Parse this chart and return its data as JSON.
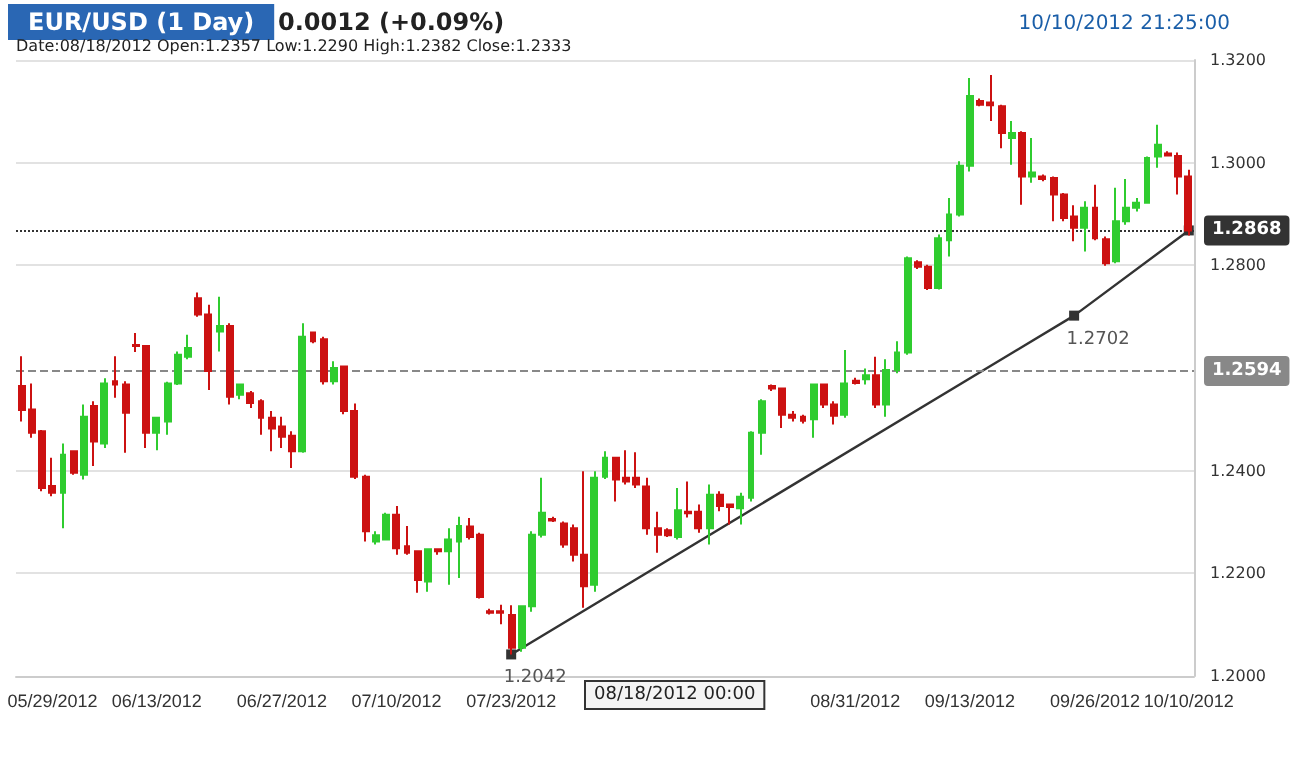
{
  "chart_data": {
    "type": "candlestick",
    "title": "EUR/USD (1 Day)",
    "subtitle": "0.0012 (+0.09%)",
    "annotations": [
      "10/10/2012 21:25:00",
      "Date:08/18/2012 Open:1.2357 Low:1.2290 High:1.2382 Close:1.2333",
      "08/18/2012 00:00"
    ],
    "categories": [
      null,
      null,
      null,
      "05/29/2012",
      null,
      null,
      null,
      null,
      null,
      null,
      null,
      null,
      null,
      "06/13/2012",
      null,
      null,
      null,
      null,
      null,
      null,
      null,
      null,
      null,
      null,
      null,
      "06/27/2012",
      null,
      null,
      null,
      null,
      null,
      null,
      null,
      null,
      null,
      null,
      "07/10/2012",
      null,
      null,
      null,
      null,
      null,
      null,
      null,
      null,
      null,
      null,
      "07/23/2012",
      null,
      null,
      null,
      null,
      null,
      null,
      null,
      null,
      null,
      null,
      null,
      null,
      null,
      null,
      null,
      null,
      null,
      null,
      null,
      null,
      null,
      null,
      null,
      null,
      null,
      null,
      null,
      null,
      null,
      null,
      null,
      null,
      "08/31/2012",
      null,
      null,
      null,
      null,
      null,
      null,
      null,
      null,
      null,
      null,
      "09/13/2012",
      null,
      null,
      null,
      null,
      null,
      null,
      null,
      null,
      null,
      null,
      null,
      "09/26/2012",
      null,
      null,
      null,
      null,
      null,
      null,
      null,
      null,
      "10/10/2012"
    ],
    "series": [
      {
        "colors": [
          "#cc1111",
          "#cc1111",
          "#cc1111",
          "#cc1111",
          "#2fcc2f",
          "#cc1111",
          "#2fcc2f",
          "#cc1111",
          "#2fcc2f",
          "#cc1111",
          "#cc1111",
          "#cc1111",
          "#cc1111",
          "#2fcc2f",
          "#2fcc2f",
          "#2fcc2f",
          "#2fcc2f",
          "#cc1111",
          "#cc1111",
          "#2fcc2f",
          "#cc1111",
          "#2fcc2f",
          "#cc1111",
          "#cc1111",
          "#cc1111",
          "#cc1111",
          "#cc1111",
          "#2fcc2f",
          "#cc1111",
          "#cc1111",
          "#2fcc2f",
          "#cc1111",
          "#cc1111",
          "#cc1111",
          "#2fcc2f",
          "#2fcc2f",
          "#cc1111",
          "#cc1111",
          "#cc1111",
          "#2fcc2f",
          "#cc1111",
          "#2fcc2f",
          "#2fcc2f",
          "#cc1111",
          "#cc1111",
          "#cc1111",
          "#cc1111",
          "#cc1111",
          "#2fcc2f",
          "#2fcc2f",
          "#2fcc2f",
          "#cc1111",
          "#cc1111",
          "#cc1111",
          "#cc1111",
          "#2fcc2f",
          "#2fcc2f",
          "#cc1111",
          "#cc1111",
          "#cc1111",
          "#cc1111",
          "#cc1111",
          "#cc1111",
          "#2fcc2f",
          "#cc1111",
          "#cc1111",
          "#2fcc2f",
          "#cc1111",
          "#cc1111",
          "#2fcc2f",
          "#2fcc2f",
          "#2fcc2f",
          "#cc1111",
          "#cc1111",
          "#cc1111",
          "#cc1111",
          "#2fcc2f",
          "#cc1111",
          "#cc1111",
          "#2fcc2f",
          "#cc1111",
          "#2fcc2f",
          "#cc1111",
          "#2fcc2f",
          "#2fcc2f",
          "#2fcc2f",
          "#cc1111",
          "#cc1111",
          "#2fcc2f",
          "#2fcc2f",
          "#2fcc2f",
          "#2fcc2f",
          "#cc1111",
          "#cc1111",
          "#cc1111",
          "#2fcc2f",
          "#cc1111",
          "#2fcc2f",
          "#cc1111",
          "#cc1111",
          "#cc1111",
          "#cc1111",
          "#2fcc2f",
          "#cc1111",
          "#cc1111",
          "#2fcc2f",
          "#2fcc2f",
          "#2fcc2f",
          "#2fcc2f",
          "#2fcc2f",
          "#cc1111",
          "#cc1111",
          "#cc1111"
        ],
        "ohlc": [
          [
            1.2565,
            1.2623,
            1.2496,
            1.2518
          ],
          [
            1.2519,
            1.257,
            1.2464,
            1.2474
          ],
          [
            1.2477,
            1.2479,
            1.236,
            1.2366
          ],
          [
            1.237,
            1.2425,
            1.235,
            1.2357
          ],
          [
            1.2357,
            1.2453,
            1.2288,
            1.2431
          ],
          [
            1.2438,
            1.2438,
            1.2392,
            1.2396
          ],
          [
            1.2392,
            1.2529,
            1.2383,
            1.2505
          ],
          [
            1.2526,
            1.2535,
            1.2409,
            1.2457
          ],
          [
            1.2453,
            1.258,
            1.2444,
            1.257
          ],
          [
            1.2574,
            1.2623,
            1.2542,
            1.2568
          ],
          [
            1.2568,
            1.2574,
            1.2435,
            1.2513
          ],
          [
            1.2645,
            1.2668,
            1.2631,
            1.2643
          ],
          [
            1.2643,
            1.2645,
            1.2444,
            1.2474
          ],
          [
            1.2474,
            1.2503,
            1.244,
            1.2503
          ],
          [
            1.2496,
            1.2573,
            1.247,
            1.257
          ],
          [
            1.257,
            1.2632,
            1.2567,
            1.2626
          ],
          [
            1.2622,
            1.2665,
            1.2617,
            1.2639
          ],
          [
            1.2736,
            1.2747,
            1.27,
            1.2704
          ],
          [
            1.2704,
            1.2723,
            1.2557,
            1.2594
          ],
          [
            1.2671,
            1.2739,
            1.2632,
            1.2682
          ],
          [
            1.2682,
            1.2687,
            1.2529,
            1.2544
          ],
          [
            1.2548,
            1.257,
            1.2539,
            1.2568
          ],
          [
            1.2551,
            1.2555,
            1.2522,
            1.2532
          ],
          [
            1.2535,
            1.2539,
            1.247,
            1.2503
          ],
          [
            1.2503,
            1.2516,
            1.2438,
            1.2482
          ],
          [
            1.2486,
            1.2505,
            1.2444,
            1.2466
          ],
          [
            1.2468,
            1.2477,
            1.2405,
            1.2438
          ],
          [
            1.2438,
            1.2687,
            1.2435,
            1.2661
          ],
          [
            1.2669,
            1.2671,
            1.2648,
            1.2652
          ],
          [
            1.2656,
            1.2661,
            1.2568,
            1.2574
          ],
          [
            1.2574,
            1.2613,
            1.2568,
            1.26
          ],
          [
            1.2603,
            1.2604,
            1.251,
            1.2516
          ],
          [
            1.2516,
            1.2531,
            1.2384,
            1.2388
          ],
          [
            1.2388,
            1.2392,
            1.2262,
            1.2282
          ],
          [
            1.2262,
            1.2282,
            1.2256,
            1.2274
          ],
          [
            1.2266,
            1.2318,
            1.2266,
            1.2314
          ],
          [
            1.2314,
            1.2331,
            1.2236,
            1.2249
          ],
          [
            1.2253,
            1.2292,
            1.2236,
            1.224
          ],
          [
            1.2243,
            1.2245,
            1.2162,
            1.2187
          ],
          [
            1.2184,
            1.2249,
            1.2164,
            1.2247
          ],
          [
            1.2247,
            1.2249,
            1.2236,
            1.2243
          ],
          [
            1.2243,
            1.2288,
            1.2178,
            1.2266
          ],
          [
            1.2262,
            1.231,
            1.2191,
            1.2292
          ],
          [
            1.2291,
            1.2308,
            1.2266,
            1.2271
          ],
          [
            1.2275,
            1.2279,
            1.2151,
            1.2154
          ],
          [
            1.2126,
            1.2131,
            1.212,
            1.2123
          ],
          [
            1.2126,
            1.2139,
            1.2101,
            1.2123
          ],
          [
            1.2119,
            1.2138,
            1.2042,
            1.2055
          ],
          [
            1.2055,
            1.2138,
            1.2047,
            1.2136
          ],
          [
            1.2136,
            1.2282,
            1.2125,
            1.2275
          ],
          [
            1.2275,
            1.2386,
            1.227,
            1.2318
          ],
          [
            1.2306,
            1.231,
            1.23,
            1.2303
          ],
          [
            1.2297,
            1.2301,
            1.225,
            1.2256
          ],
          [
            1.2288,
            1.2295,
            1.2223,
            1.2236
          ],
          [
            1.2236,
            1.2399,
            1.2133,
            1.2175
          ],
          [
            1.2178,
            1.2399,
            1.2164,
            1.2386
          ],
          [
            1.2388,
            1.2438,
            1.2384,
            1.2425
          ],
          [
            1.2425,
            1.2427,
            1.234,
            1.2383
          ],
          [
            1.2386,
            1.244,
            1.2373,
            1.2379
          ],
          [
            1.2386,
            1.2436,
            1.2366,
            1.2373
          ],
          [
            1.2369,
            1.2386,
            1.2275,
            1.2288
          ],
          [
            1.2288,
            1.232,
            1.224,
            1.2275
          ],
          [
            1.2284,
            1.2288,
            1.2271,
            1.2274
          ],
          [
            1.2271,
            1.2366,
            1.2266,
            1.2323
          ],
          [
            1.232,
            1.2379,
            1.2309,
            1.2317
          ],
          [
            1.232,
            1.2334,
            1.2279,
            1.2288
          ],
          [
            1.2288,
            1.2373,
            1.2256,
            1.2353
          ],
          [
            1.2353,
            1.236,
            1.2321,
            1.2331
          ],
          [
            1.2334,
            1.2336,
            1.2295,
            1.2329
          ],
          [
            1.2327,
            1.2357,
            1.2295,
            1.2349
          ],
          [
            1.2347,
            1.2477,
            1.234,
            1.2474
          ],
          [
            1.2474,
            1.2539,
            1.2431,
            1.2535
          ],
          [
            1.2565,
            1.2568,
            1.2555,
            1.256
          ],
          [
            1.256,
            1.2562,
            1.2483,
            1.2509
          ],
          [
            1.2509,
            1.2516,
            1.2496,
            1.2503
          ],
          [
            1.2505,
            1.2509,
            1.2492,
            1.2497
          ],
          [
            1.25,
            1.257,
            1.2464,
            1.2568
          ],
          [
            1.2568,
            1.257,
            1.2522,
            1.2529
          ],
          [
            1.2529,
            1.2535,
            1.249,
            1.2507
          ],
          [
            1.2509,
            1.2635,
            1.2503,
            1.257
          ],
          [
            1.2575,
            1.2581,
            1.2568,
            1.2571
          ],
          [
            1.2578,
            1.2599,
            1.2568,
            1.2586
          ],
          [
            1.2586,
            1.2622,
            1.2522,
            1.2529
          ],
          [
            1.2529,
            1.2617,
            1.2505,
            1.2596
          ],
          [
            1.2596,
            1.2652,
            1.259,
            1.263
          ],
          [
            1.263,
            1.2817,
            1.2626,
            1.2814
          ],
          [
            1.2806,
            1.281,
            1.2793,
            1.2797
          ],
          [
            1.2797,
            1.2801,
            1.2752,
            1.2756
          ],
          [
            1.2756,
            1.286,
            1.2753,
            1.2853
          ],
          [
            1.2849,
            1.2931,
            1.2817,
            1.2899
          ],
          [
            1.2899,
            1.3003,
            1.2895,
            1.2994
          ],
          [
            1.2994,
            1.3165,
            1.2983,
            1.313
          ],
          [
            1.312,
            1.3125,
            1.311,
            1.3113
          ],
          [
            1.3117,
            1.3171,
            1.3081,
            1.3112
          ],
          [
            1.311,
            1.3113,
            1.3028,
            1.3058
          ],
          [
            1.3048,
            1.3081,
            1.2996,
            1.3058
          ],
          [
            1.3058,
            1.3061,
            1.2918,
            1.2973
          ],
          [
            1.2973,
            1.3048,
            1.2961,
            1.2981
          ],
          [
            1.2973,
            1.2977,
            1.2964,
            1.2968
          ],
          [
            1.297,
            1.2973,
            1.2886,
            1.2938
          ],
          [
            1.2938,
            1.2941,
            1.2886,
            1.2892
          ],
          [
            1.2895,
            1.2917,
            1.2847,
            1.2873
          ],
          [
            1.2873,
            1.2925,
            1.2827,
            1.2912
          ],
          [
            1.2912,
            1.2957,
            1.2849,
            1.2853
          ],
          [
            1.2851,
            1.2856,
            1.2799,
            1.2804
          ],
          [
            1.2808,
            1.2951,
            1.2804,
            1.2886
          ],
          [
            1.2886,
            1.2968,
            1.2879,
            1.2912
          ],
          [
            1.2912,
            1.2931,
            1.2905,
            1.2922
          ],
          [
            1.2922,
            1.3012,
            1.292,
            1.3009
          ],
          [
            1.3012,
            1.3074,
            1.299,
            1.3035
          ],
          [
            1.3018,
            1.3022,
            1.3012,
            1.3014
          ],
          [
            1.3013,
            1.302,
            1.2938,
            1.2973
          ],
          [
            1.2973,
            1.2986,
            1.2858,
            1.2868
          ]
        ]
      },
      {
        "type": "line",
        "color": "#333333",
        "marker": "square",
        "value_labels": [
          null,
          null,
          null,
          null,
          null,
          null,
          null,
          null,
          null,
          null,
          null,
          null,
          null,
          null,
          null,
          null,
          null,
          null,
          null,
          null,
          null,
          null,
          null,
          null,
          null,
          null,
          null,
          null,
          null,
          null,
          null,
          null,
          null,
          null,
          null,
          null,
          null,
          null,
          null,
          null,
          null,
          null,
          null,
          null,
          null,
          null,
          null,
          "1.2042",
          null,
          null,
          null,
          null,
          null,
          null,
          null,
          null,
          null,
          null,
          null,
          null,
          null,
          null,
          null,
          null,
          null,
          null,
          null,
          null,
          null,
          null,
          null,
          null,
          null,
          null,
          null,
          null,
          null,
          null,
          null,
          null,
          null,
          null,
          null,
          null,
          null,
          null,
          null,
          null,
          null,
          null,
          null,
          null,
          null,
          null,
          null,
          null,
          null,
          null,
          null,
          null,
          null,
          "1.2702",
          null,
          null,
          null,
          null,
          null,
          null,
          null,
          null,
          null,
          null,
          null
        ],
        "values": [
          null,
          null,
          null,
          null,
          null,
          null,
          null,
          null,
          null,
          null,
          null,
          null,
          null,
          null,
          null,
          null,
          null,
          null,
          null,
          null,
          null,
          null,
          null,
          null,
          null,
          null,
          null,
          null,
          null,
          null,
          null,
          null,
          null,
          null,
          null,
          null,
          null,
          null,
          null,
          null,
          null,
          null,
          null,
          null,
          null,
          null,
          null,
          1.2042,
          null,
          null,
          null,
          null,
          null,
          null,
          null,
          null,
          null,
          null,
          null,
          null,
          null,
          null,
          null,
          null,
          null,
          null,
          null,
          null,
          null,
          null,
          null,
          null,
          null,
          null,
          null,
          null,
          null,
          null,
          null,
          null,
          null,
          null,
          null,
          null,
          null,
          null,
          null,
          null,
          null,
          null,
          null,
          null,
          null,
          null,
          null,
          null,
          null,
          null,
          null,
          null,
          null,
          1.2702,
          null,
          null,
          null,
          null,
          null,
          null,
          null,
          null,
          null,
          null,
          1.2868
        ]
      }
    ],
    "ylim": [
      1.2,
      1.32
    ],
    "yticks": [
      {
        "value": 1.2,
        "label": "1.2000"
      },
      {
        "value": 1.22,
        "label": "1.2200"
      },
      {
        "value": 1.24,
        "label": "1.2400"
      },
      {
        "value": 1.28,
        "label": "1.2800"
      },
      {
        "value": 1.3,
        "label": "1.3000"
      },
      {
        "value": 1.32,
        "label": "1.3200"
      }
    ],
    "ref_lines": [
      {
        "axis": "y",
        "value": 1.2868,
        "label": "1.2868",
        "color": "#333333",
        "line_style": "dotted"
      },
      {
        "axis": "y",
        "value": 1.2594,
        "label": "1.2594",
        "color": "#888888",
        "line_style": "dashed"
      }
    ],
    "grid": "y"
  }
}
